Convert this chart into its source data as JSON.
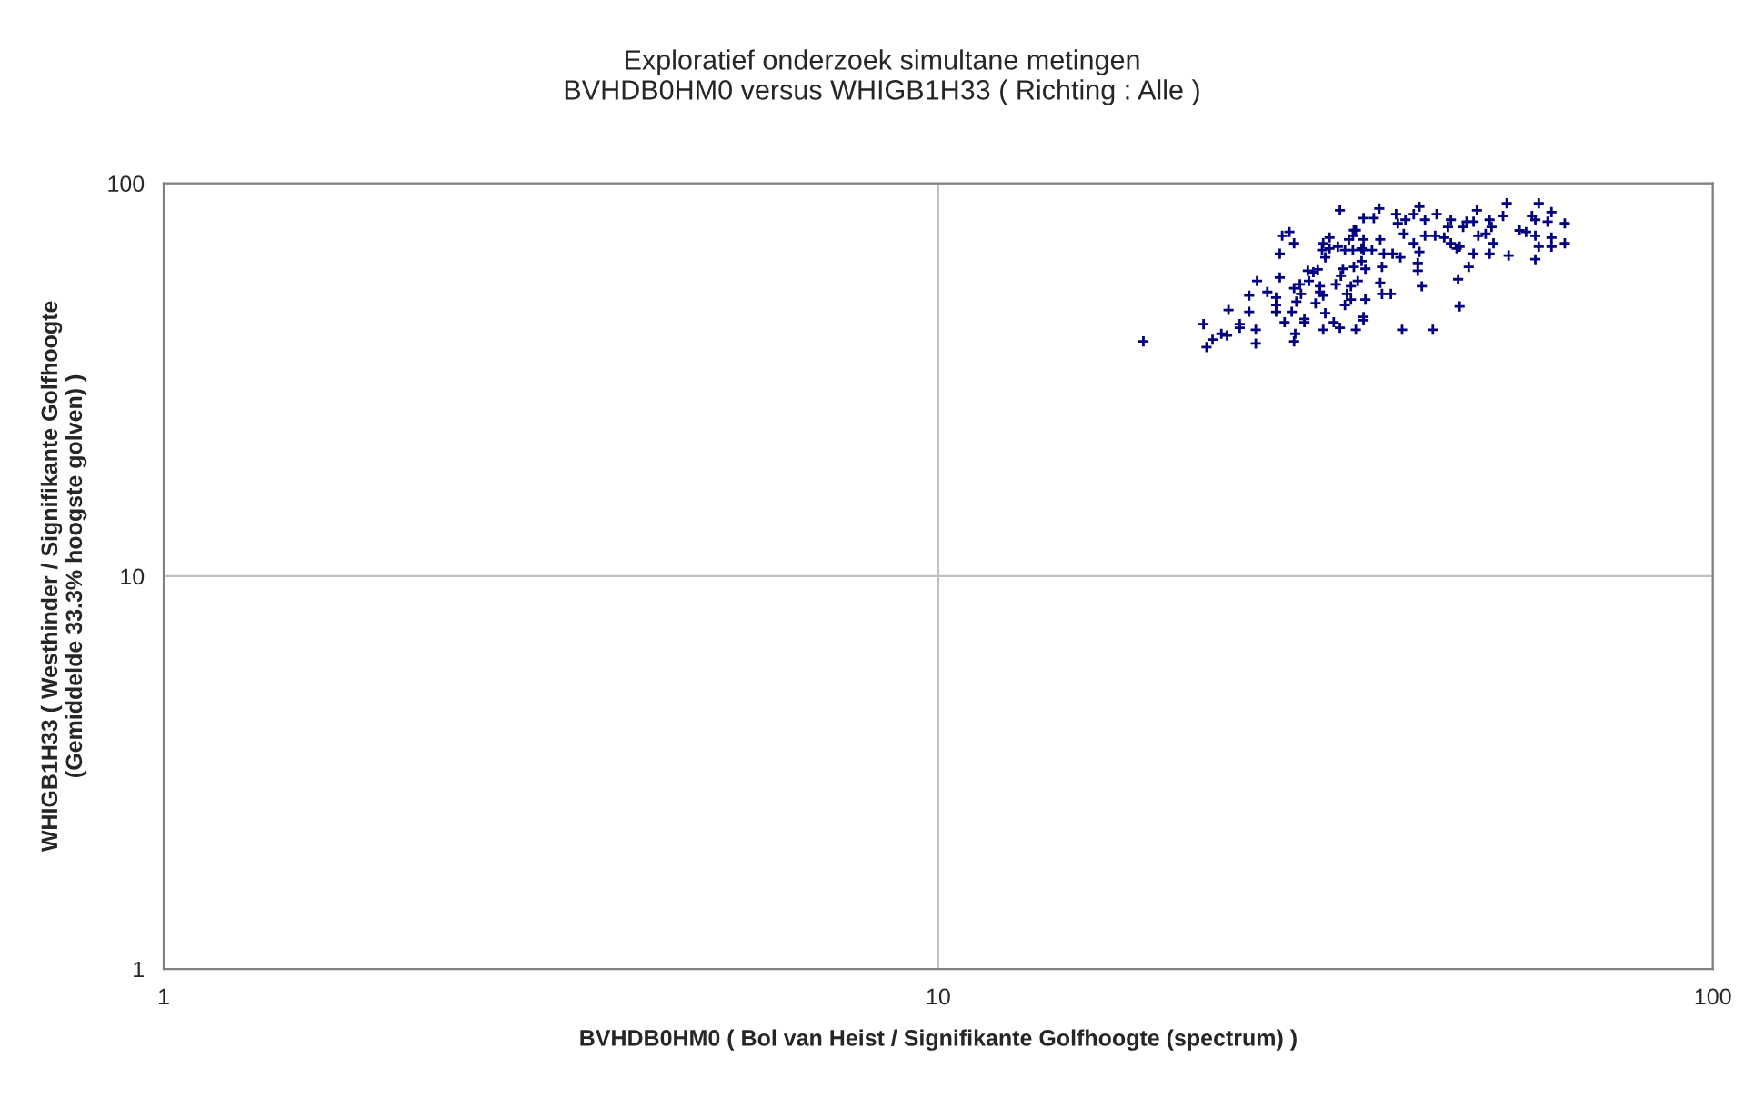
{
  "chart_data": {
    "type": "scatter",
    "title": "Exploratief onderzoek simultane metingen\nBVHDB0HM0 versus WHIGB1H33 ( Richting : Alle )",
    "xlabel": "BVHDB0HM0 ( Bol van Heist / Signifikante Golfhoogte (spectrum) )",
    "ylabel": "WHIGB1H33 ( Westhinder / Signifikante Golfhoogte\n(Gemiddelde 33.3% hoogste golven) )",
    "log": "xy",
    "xlim": [
      1,
      100
    ],
    "ylim": [
      1,
      100
    ],
    "xticks": [
      1,
      10,
      100
    ],
    "yticks": [
      1,
      10,
      100
    ],
    "grid": true,
    "marker": "cross",
    "series": [
      {
        "color": "#000080",
        "x": [
          18.4,
          22.2,
          22.6,
          23.2,
          23.6,
          22.0,
          23.7,
          24.5,
          24.5,
          25.2,
          25.2,
          25.8,
          25.7,
          25.7,
          26.6,
          27.3,
          27.3,
          27.3,
          27.6,
          27.6,
          27.8,
          28.4,
          28.8,
          28.0,
          28.6,
          28.8,
          29.0,
          29.3,
          29.4,
          29.7,
          29.7,
          28.9,
          28.8,
          30.0,
          30.5,
          30.1,
          30.9,
          31.3,
          31.4,
          32.0,
          32.0,
          32.8,
          31.6,
          31.1,
          31.1,
          31.4,
          30.7,
          31.6,
          31.4,
          32.4,
          33.0,
          32.6,
          33.1,
          33.3,
          33.5,
          33.0,
          33.9,
          34.3,
          34.6,
          35.4,
          35.4,
          33.7,
          33.5,
          34.8,
          35.4,
          34.6,
          35.4,
          35.2,
          34.4,
          34.3,
          34.4,
          34.1,
          34.1,
          35.2,
          35.6,
          35.4,
          35.6,
          36.5,
          37.1,
          36.3,
          37.2,
          37.6,
          37.4,
          37.2,
          37.4,
          38.4,
          38.6,
          39.0,
          39.2,
          39.5,
          40.1,
          39.9,
          41.1,
          41.8,
          41.1,
          41.6,
          41.6,
          41.8,
          42.1,
          42.5,
          42.5,
          44.0,
          43.8,
          45.0,
          45.5,
          45.9,
          45.9,
          47.1,
          46.7,
          47.6,
          48.1,
          49.1,
          49.6,
          48.4,
          46.9,
          47.1,
          49.1,
          49.8,
          50.9,
          51.8,
          51.5,
          52.1,
          51.5,
          53.6,
          54.2,
          54.5,
          56.3,
          57.4,
          58.4,
          59.0,
          59.6,
          59.0,
          59.6,
          59.0,
          61.2,
          61.9,
          61.9,
          61.9,
          64.4,
          64.4,
          39.7,
          43.5
        ],
        "values": [
          39.6,
          38.3,
          40,
          41.4,
          41,
          43.8,
          47.6,
          43.8,
          42.9,
          51.8,
          47.1,
          56.4,
          42.4,
          39.1,
          52.9,
          51.2,
          49,
          47.1,
          66.2,
          57.6,
          73.6,
          75.2,
          70.4,
          44.3,
          47.1,
          54.1,
          50,
          55.3,
          52.3,
          45.2,
          44.3,
          41.4,
          39.6,
          59.9,
          59.4,
          56.4,
          60.4,
          67.6,
          70.4,
          72.8,
          68.3,
          69,
          64.8,
          54.7,
          52.9,
          51.8,
          49.5,
          46.7,
          42.4,
          44.3,
          42.9,
          55.3,
          58.2,
          60.6,
          67.6,
          85.4,
          72,
          73.6,
          76,
          81.6,
          72,
          52.3,
          49,
          56.4,
          45.7,
          42.4,
          67.6,
          63.4,
          76,
          67.6,
          61.3,
          54.7,
          50.6,
          68.3,
          60.6,
          44.8,
          50.6,
          81.6,
          86.3,
          67.6,
          72,
          66.2,
          61.3,
          55.8,
          52.3,
          52.3,
          66.2,
          83.5,
          79.1,
          64.8,
          80.8,
          74.4,
          83.5,
          87.2,
          70.4,
          62.7,
          59.9,
          66.9,
          54.7,
          80.8,
          73.6,
          83.5,
          73.6,
          72.8,
          77.5,
          80.8,
          70.4,
          69,
          68.3,
          77.5,
          79.9,
          79.9,
          85.4,
          61.3,
          57,
          48.6,
          66.2,
          73.6,
          74.4,
          77.5,
          80.8,
          70.4,
          66.2,
          82.6,
          89,
          65.5,
          75.9,
          75.2,
          82.6,
          80.8,
          89,
          73.6,
          69,
          64.1,
          79.9,
          84.5,
          72.8,
          69,
          79.1,
          70.4,
          42.4,
          42.4
        ]
      }
    ]
  }
}
